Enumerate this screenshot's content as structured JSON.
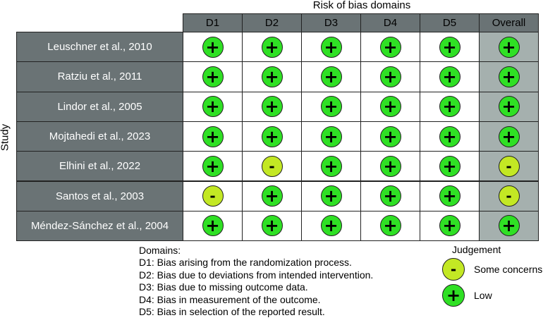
{
  "title": "Risk of bias domains",
  "y_label": "Study",
  "columns": [
    "D1",
    "D2",
    "D3",
    "D4",
    "D5",
    "Overall"
  ],
  "studies": [
    {
      "name": "Leuschner et al., 2010",
      "judgements": [
        "low",
        "low",
        "low",
        "low",
        "low",
        "low"
      ]
    },
    {
      "name": "Ratziu et al., 2011",
      "judgements": [
        "low",
        "low",
        "low",
        "low",
        "low",
        "low"
      ]
    },
    {
      "name": "Lindor et al., 2005",
      "judgements": [
        "low",
        "low",
        "low",
        "low",
        "low",
        "low"
      ]
    },
    {
      "name": "Mojtahedi et al., 2023",
      "judgements": [
        "low",
        "low",
        "low",
        "low",
        "low",
        "low"
      ]
    },
    {
      "name": "Elhini et al., 2022",
      "judgements": [
        "low",
        "some",
        "low",
        "low",
        "low",
        "some"
      ]
    },
    {
      "name": "Santos et al., 2003",
      "judgements": [
        "some",
        "low",
        "low",
        "low",
        "low",
        "some"
      ]
    },
    {
      "name": "Méndez-Sánchez et al., 2004",
      "judgements": [
        "low",
        "low",
        "low",
        "low",
        "low",
        "low"
      ]
    }
  ],
  "symbols": {
    "low": "+",
    "some": "-"
  },
  "colors": {
    "low": "#2fe024",
    "some": "#c3e824",
    "header_bg": "#6a7375",
    "overall_bg": "#a5b0ae",
    "study_text": "#ffffff"
  },
  "domains_legend": {
    "title": "Domains:",
    "items": [
      "D1: Bias arising from the randomization process.",
      "D2: Bias due to deviations from intended intervention.",
      "D3: Bias due to missing outcome data.",
      "D4: Bias in measurement of the outcome.",
      "D5: Bias in selection of the reported result."
    ]
  },
  "judgement_legend": {
    "title": "Judgement",
    "items": [
      {
        "key": "some",
        "label": "Some concerns"
      },
      {
        "key": "low",
        "label": "Low"
      }
    ]
  }
}
